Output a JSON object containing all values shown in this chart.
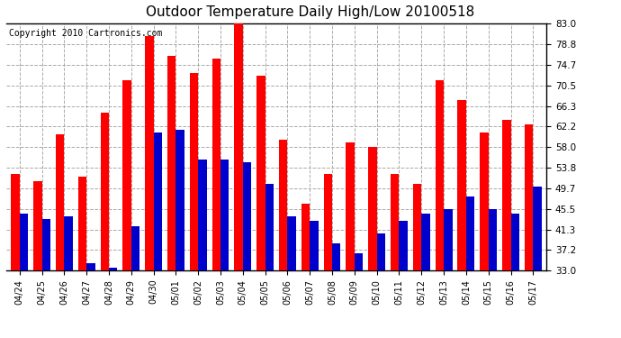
{
  "title": "Outdoor Temperature Daily High/Low 20100518",
  "copyright": "Copyright 2010 Cartronics.com",
  "dates": [
    "04/24",
    "04/25",
    "04/26",
    "04/27",
    "04/28",
    "04/29",
    "04/30",
    "05/01",
    "05/02",
    "05/03",
    "05/04",
    "05/05",
    "05/06",
    "05/07",
    "05/08",
    "05/09",
    "05/10",
    "05/11",
    "05/12",
    "05/13",
    "05/14",
    "05/15",
    "05/16",
    "05/17"
  ],
  "highs": [
    52.5,
    51.0,
    60.5,
    52.0,
    65.0,
    71.5,
    80.5,
    76.5,
    73.0,
    76.0,
    83.5,
    72.5,
    59.5,
    46.5,
    52.5,
    59.0,
    58.0,
    52.5,
    50.5,
    71.5,
    67.5,
    61.0,
    63.5,
    62.5
  ],
  "lows": [
    44.5,
    43.5,
    44.0,
    34.5,
    33.5,
    42.0,
    61.0,
    61.5,
    55.5,
    55.5,
    55.0,
    50.5,
    44.0,
    43.0,
    38.5,
    36.5,
    40.5,
    43.0,
    44.5,
    45.5,
    48.0,
    45.5,
    44.5,
    50.0
  ],
  "high_color": "#ff0000",
  "low_color": "#0000cc",
  "background_color": "#ffffff",
  "yticks": [
    33.0,
    37.2,
    41.3,
    45.5,
    49.7,
    53.8,
    58.0,
    62.2,
    66.3,
    70.5,
    74.7,
    78.8,
    83.0
  ],
  "ylim": [
    33.0,
    83.0
  ],
  "grid_color": "#aaaaaa",
  "title_fontsize": 11,
  "copyright_fontsize": 7
}
